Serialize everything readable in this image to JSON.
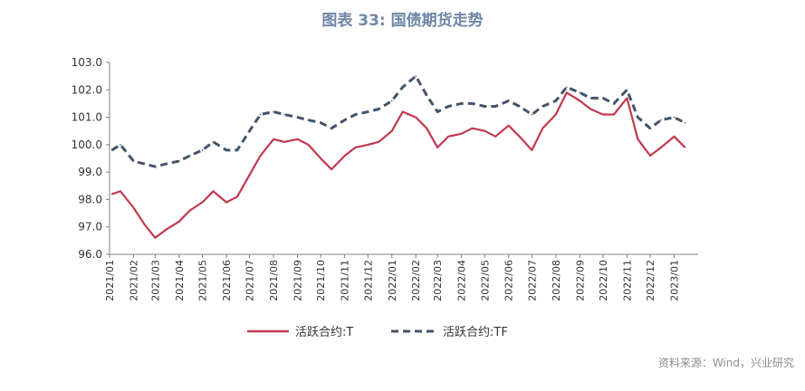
{
  "chart_data": {
    "type": "line",
    "title": "图表 33: 国债期货走势",
    "xlabel": "",
    "ylabel": "",
    "ylim": [
      96.0,
      103.0
    ],
    "yticks": [
      "96.0",
      "97.0",
      "98.0",
      "99.0",
      "100.0",
      "101.0",
      "102.0",
      "103.0"
    ],
    "grid": false,
    "legend_position": "bottom",
    "x_tick_labels": [
      "2021/01",
      "2021/02",
      "2021/03",
      "2021/04",
      "2021/05",
      "2021/06",
      "2021/07",
      "2021/08",
      "2021/09",
      "2021/10",
      "2021/11",
      "2021/12",
      "2022/01",
      "2022/02",
      "2022/03",
      "2022/04",
      "2022/05",
      "2022/06",
      "2022/07",
      "2022/08",
      "2022/09",
      "2022/10",
      "2022/11",
      "2022/12",
      "2023/01"
    ],
    "x": [
      "2021/01/04",
      "2021/01/15",
      "2021/02/01",
      "2021/02/15",
      "2021/03/01",
      "2021/03/15",
      "2021/04/01",
      "2021/04/15",
      "2021/05/01",
      "2021/05/15",
      "2021/06/01",
      "2021/06/15",
      "2021/07/01",
      "2021/07/15",
      "2021/08/01",
      "2021/08/15",
      "2021/09/01",
      "2021/09/15",
      "2021/10/01",
      "2021/10/15",
      "2021/11/01",
      "2021/11/15",
      "2021/12/01",
      "2021/12/15",
      "2022/01/01",
      "2022/01/15",
      "2022/02/01",
      "2022/02/15",
      "2022/03/01",
      "2022/03/15",
      "2022/04/01",
      "2022/04/15",
      "2022/05/01",
      "2022/05/15",
      "2022/06/01",
      "2022/06/15",
      "2022/07/01",
      "2022/07/15",
      "2022/08/01",
      "2022/08/15",
      "2022/09/01",
      "2022/09/15",
      "2022/10/01",
      "2022/10/15",
      "2022/11/01",
      "2022/11/15",
      "2022/12/01",
      "2022/12/15",
      "2023/01/01",
      "2023/01/15"
    ],
    "series": [
      {
        "name": "活跃合约:T",
        "color": "#c0394f",
        "style": "solid",
        "values": [
          98.2,
          98.3,
          97.7,
          97.1,
          96.6,
          96.9,
          97.2,
          97.6,
          97.9,
          98.3,
          97.9,
          98.1,
          98.9,
          99.6,
          100.2,
          100.1,
          100.2,
          100.0,
          99.5,
          99.1,
          99.6,
          99.9,
          100.0,
          100.1,
          100.5,
          101.2,
          101.0,
          100.6,
          99.9,
          100.3,
          100.4,
          100.6,
          100.5,
          100.3,
          100.7,
          100.3,
          99.8,
          100.6,
          101.1,
          101.9,
          101.6,
          101.3,
          101.1,
          101.1,
          101.7,
          100.2,
          99.6,
          99.9,
          100.3,
          99.9
        ]
      },
      {
        "name": "活跃合约:TF",
        "color": "#44546a",
        "style": "dashed",
        "values": [
          99.8,
          100.0,
          99.4,
          99.3,
          99.2,
          99.3,
          99.4,
          99.6,
          99.8,
          100.1,
          99.8,
          99.8,
          100.5,
          101.1,
          101.2,
          101.1,
          101.0,
          100.9,
          100.8,
          100.6,
          100.9,
          101.1,
          101.2,
          101.3,
          101.6,
          102.1,
          102.5,
          101.8,
          101.2,
          101.4,
          101.5,
          101.5,
          101.4,
          101.4,
          101.6,
          101.4,
          101.1,
          101.4,
          101.6,
          102.1,
          101.9,
          101.7,
          101.7,
          101.5,
          102.0,
          101.0,
          100.6,
          100.9,
          101.0,
          100.8
        ]
      }
    ]
  },
  "source": "资料来源：Wind，兴业研究"
}
